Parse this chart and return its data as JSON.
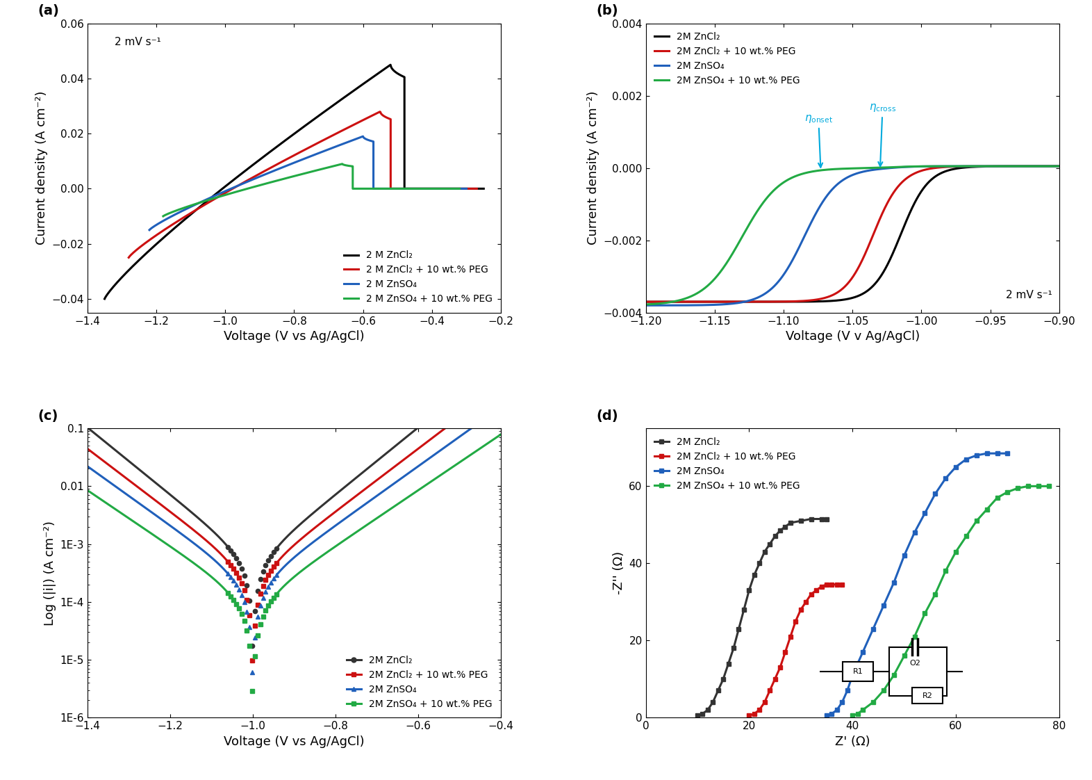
{
  "panel_a": {
    "title_label": "(a)",
    "annotation": "2 mV s⁻¹",
    "xlabel": "Voltage (V vs Ag/AgCl)",
    "ylabel": "Current density (A cm⁻²)",
    "xlim": [
      -1.4,
      -0.2
    ],
    "ylim": [
      -0.045,
      0.06
    ],
    "yticks": [
      -0.04,
      -0.02,
      0.0,
      0.02,
      0.04,
      0.06
    ],
    "xticks": [
      -1.4,
      -1.2,
      -1.0,
      -0.8,
      -0.6,
      -0.4,
      -0.2
    ],
    "legend_labels": [
      "2 M ZnCl₂",
      "2 M ZnCl₂ + 10 wt.% PEG",
      "2 M ZnSO₄",
      "2 M ZnSO₄ + 10 wt.% PEG"
    ],
    "colors": [
      "#000000",
      "#cc1111",
      "#2060bb",
      "#22aa44"
    ]
  },
  "panel_b": {
    "title_label": "(b)",
    "annotation": "2 mV s⁻¹",
    "xlabel": "Voltage (V v Ag/AgCl)",
    "ylabel": "Current density (A cm⁻²)",
    "xlim": [
      -1.2,
      -0.9
    ],
    "ylim": [
      -0.004,
      0.004
    ],
    "yticks": [
      -0.004,
      -0.002,
      0.0,
      0.002,
      0.004
    ],
    "xticks": [
      -1.2,
      -1.15,
      -1.1,
      -1.05,
      -1.0,
      -0.95,
      -0.9
    ],
    "legend_labels": [
      "2M ZnCl₂",
      "2M ZnCl₂ + 10 wt.% PEG",
      "2M ZnSO₄",
      "2M ZnSO₄ + 10 wt.% PEG"
    ],
    "colors": [
      "#000000",
      "#cc1111",
      "#2060bb",
      "#22aa44"
    ],
    "eta_color": "#00aadd"
  },
  "panel_c": {
    "title_label": "(c)",
    "xlabel": "Voltage (V vs Ag/AgCl)",
    "ylabel": "Log (|i|) (A cm⁻²)",
    "xlim": [
      -1.4,
      -0.4
    ],
    "ylim_log": [
      1e-06,
      0.1
    ],
    "xticks": [
      -1.4,
      -1.2,
      -1.0,
      -0.8,
      -0.6,
      -0.4
    ],
    "legend_labels": [
      "2M ZnCl₂",
      "2M ZnCl₂ + 10 wt.% PEG",
      "2M ZnSO₄",
      "2M ZnSO₄ + 10 wt.% PEG"
    ],
    "colors": [
      "#333333",
      "#cc1111",
      "#2060bb",
      "#22aa44"
    ],
    "marker_styles": [
      "o",
      "s",
      "^",
      "s"
    ]
  },
  "panel_d": {
    "title_label": "(d)",
    "xlabel": "Z' (Ω)",
    "ylabel": "-Z'' (Ω)",
    "xlim": [
      0,
      80
    ],
    "ylim": [
      0,
      75
    ],
    "xticks": [
      0,
      20,
      40,
      60,
      80
    ],
    "yticks": [
      0,
      20,
      40,
      60
    ],
    "legend_labels": [
      "2M ZnCl₂",
      "2M ZnCl₂ + 10 wt.% PEG",
      "2M ZnSO₄",
      "2M ZnSO₄ + 10 wt.% PEG"
    ],
    "colors": [
      "#333333",
      "#cc1111",
      "#2060bb",
      "#22aa44"
    ]
  }
}
